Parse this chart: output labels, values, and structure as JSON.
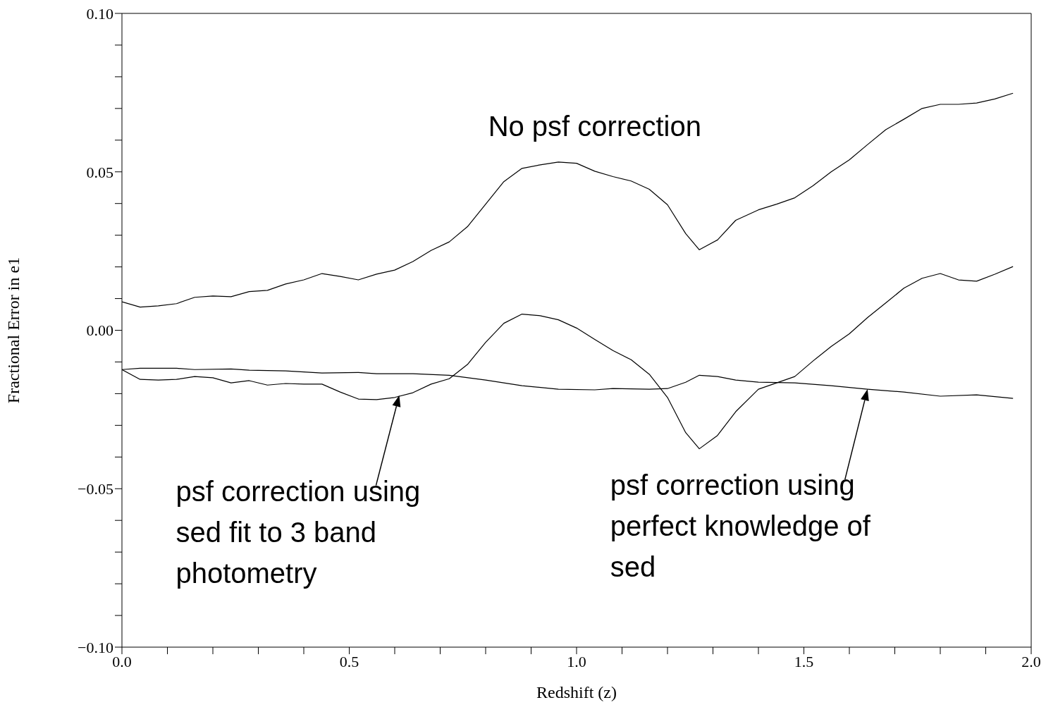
{
  "chart_data": {
    "type": "line",
    "xlabel": "Redshift (z)",
    "ylabel": "Fractional Error in e1",
    "xlim": [
      0,
      2
    ],
    "ylim": [
      -0.1,
      0.1
    ],
    "xticks": [
      {
        "value": 0,
        "label": "0.0"
      },
      {
        "value": 0.1,
        "label": null
      },
      {
        "value": 0.2,
        "label": null
      },
      {
        "value": 0.3,
        "label": null
      },
      {
        "value": 0.4,
        "label": null
      },
      {
        "value": 0.5,
        "label": "0.5"
      },
      {
        "value": 0.6,
        "label": null
      },
      {
        "value": 0.7,
        "label": null
      },
      {
        "value": 0.8,
        "label": null
      },
      {
        "value": 0.9,
        "label": null
      },
      {
        "value": 1,
        "label": "1.0"
      },
      {
        "value": 1.1,
        "label": null
      },
      {
        "value": 1.2,
        "label": null
      },
      {
        "value": 1.3,
        "label": null
      },
      {
        "value": 1.4,
        "label": null
      },
      {
        "value": 1.5,
        "label": "1.5"
      },
      {
        "value": 1.6,
        "label": null
      },
      {
        "value": 1.7,
        "label": null
      },
      {
        "value": 1.8,
        "label": null
      },
      {
        "value": 1.9,
        "label": null
      },
      {
        "value": 2,
        "label": "2.0"
      }
    ],
    "yticks": [
      {
        "value": -0.1,
        "label": "−0.10"
      },
      {
        "value": -0.09,
        "label": null
      },
      {
        "value": -0.08,
        "label": null
      },
      {
        "value": -0.07,
        "label": null
      },
      {
        "value": -0.06,
        "label": null
      },
      {
        "value": -0.05,
        "label": "−0.05"
      },
      {
        "value": -0.04,
        "label": null
      },
      {
        "value": -0.03,
        "label": null
      },
      {
        "value": -0.02,
        "label": null
      },
      {
        "value": -0.01,
        "label": null
      },
      {
        "value": 0,
        "label": "0.00"
      },
      {
        "value": 0.01,
        "label": null
      },
      {
        "value": 0.02,
        "label": null
      },
      {
        "value": 0.03,
        "label": null
      },
      {
        "value": 0.04,
        "label": null
      },
      {
        "value": 0.05,
        "label": "0.05"
      },
      {
        "value": 0.06,
        "label": null
      },
      {
        "value": 0.07,
        "label": null
      },
      {
        "value": 0.08,
        "label": null
      },
      {
        "value": 0.09,
        "label": null
      },
      {
        "value": 0.1,
        "label": "0.10"
      }
    ],
    "marker": "none",
    "line_style": "solid",
    "series": [
      {
        "color": "#000000",
        "x": [
          0,
          0.04,
          0.08,
          0.12,
          0.16,
          0.2,
          0.24,
          0.28,
          0.32,
          0.36,
          0.4,
          0.44,
          0.48,
          0.52,
          0.56,
          0.6,
          0.64,
          0.68,
          0.72,
          0.76,
          0.8,
          0.84,
          0.88,
          0.92,
          0.96,
          1,
          1.04,
          1.08,
          1.12,
          1.16,
          1.2,
          1.24,
          1.27,
          1.31,
          1.35,
          1.4,
          1.44,
          1.48,
          1.52,
          1.56,
          1.6,
          1.64,
          1.68,
          1.72,
          1.76,
          1.8,
          1.84,
          1.88,
          1.92,
          1.96
        ],
        "values": [
          0.009,
          0.0073,
          0.0077,
          0.0084,
          0.0104,
          0.0108,
          0.0106,
          0.0122,
          0.0126,
          0.0146,
          0.0159,
          0.0179,
          0.017,
          0.0159,
          0.0177,
          0.019,
          0.0217,
          0.0252,
          0.0279,
          0.0327,
          0.0398,
          0.0469,
          0.0511,
          0.0522,
          0.0531,
          0.0527,
          0.0502,
          0.0485,
          0.0471,
          0.0445,
          0.0396,
          0.0305,
          0.0254,
          0.0285,
          0.0347,
          0.038,
          0.0398,
          0.0418,
          0.0456,
          0.05,
          0.0538,
          0.0586,
          0.0633,
          0.0666,
          0.07,
          0.0713,
          0.0713,
          0.0717,
          0.073,
          0.0748
        ]
      },
      {
        "color": "#000000",
        "x": [
          0,
          0.04,
          0.08,
          0.12,
          0.16,
          0.2,
          0.24,
          0.28,
          0.32,
          0.36,
          0.4,
          0.44,
          0.48,
          0.52,
          0.56,
          0.6,
          0.64,
          0.68,
          0.72,
          0.76,
          0.8,
          0.84,
          0.88,
          0.92,
          0.96,
          1,
          1.04,
          1.08,
          1.12,
          1.16,
          1.2,
          1.24,
          1.27,
          1.31,
          1.35,
          1.4,
          1.44,
          1.48,
          1.52,
          1.56,
          1.6,
          1.64,
          1.68,
          1.72,
          1.76,
          1.8,
          1.84,
          1.88,
          1.92,
          1.96
        ],
        "values": [
          -0.0124,
          -0.0155,
          -0.0157,
          -0.0155,
          -0.0146,
          -0.015,
          -0.0166,
          -0.0159,
          -0.0173,
          -0.0168,
          -0.017,
          -0.017,
          -0.0195,
          -0.0217,
          -0.0219,
          -0.0212,
          -0.0197,
          -0.017,
          -0.0153,
          -0.0108,
          -0.0038,
          0.0022,
          0.0051,
          0.0046,
          0.0033,
          0.0007,
          -0.0029,
          -0.0064,
          -0.0093,
          -0.0139,
          -0.0212,
          -0.0323,
          -0.0374,
          -0.0332,
          -0.0257,
          -0.0186,
          -0.0166,
          -0.0146,
          -0.0097,
          -0.0051,
          -0.0011,
          0.004,
          0.0086,
          0.0133,
          0.0164,
          0.0179,
          0.0159,
          0.0155,
          0.0177,
          0.0201
        ]
      },
      {
        "color": "#000000",
        "x": [
          0,
          0.04,
          0.12,
          0.16,
          0.24,
          0.28,
          0.36,
          0.44,
          0.52,
          0.56,
          0.64,
          0.72,
          0.8,
          0.88,
          0.96,
          1.04,
          1.08,
          1.16,
          1.2,
          1.24,
          1.27,
          1.31,
          1.35,
          1.4,
          1.48,
          1.56,
          1.64,
          1.72,
          1.8,
          1.88,
          1.96
        ],
        "values": [
          -0.0124,
          -0.012,
          -0.012,
          -0.0124,
          -0.0122,
          -0.0126,
          -0.0128,
          -0.0135,
          -0.0133,
          -0.0137,
          -0.0137,
          -0.0142,
          -0.0157,
          -0.0175,
          -0.0186,
          -0.0188,
          -0.0184,
          -0.0186,
          -0.0184,
          -0.0164,
          -0.0142,
          -0.0146,
          -0.0157,
          -0.0164,
          -0.0166,
          -0.0175,
          -0.0186,
          -0.0195,
          -0.0208,
          -0.0204,
          -0.0215
        ]
      }
    ],
    "annotations": [
      {
        "text": "No psf correction",
        "x": 1.04,
        "y": 0.0502
      },
      {
        "text": "psf correction using sed fit to 3 band photometry",
        "x": 0.61,
        "y": -0.0205
      },
      {
        "text": "psf correction using perfect knowledge of sed",
        "x": 1.64,
        "y": -0.0186
      }
    ]
  }
}
